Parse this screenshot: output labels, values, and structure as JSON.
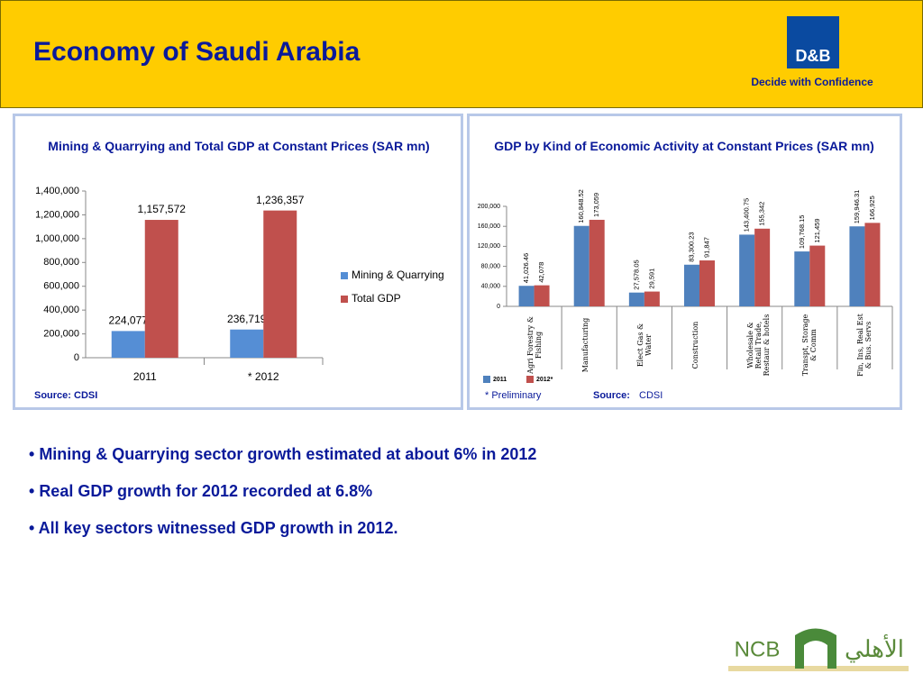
{
  "header": {
    "title": "Economy of Saudi Arabia",
    "logo": "D&B",
    "tagline": "Decide with Confidence"
  },
  "chart_data": [
    {
      "type": "bar",
      "title": "Mining & Quarrying and Total GDP at Constant Prices (SAR mn)",
      "categories": [
        "2011",
        "* 2012"
      ],
      "series": [
        {
          "name": "Mining & Quarrying",
          "color": "#558ed5",
          "values": [
            224077,
            236719
          ],
          "value_labels": [
            "224,077",
            "236,719"
          ]
        },
        {
          "name": "Total GDP",
          "color": "#c0504d",
          "values": [
            1157572,
            1236357
          ],
          "value_labels": [
            "1,157,572",
            "1,236,357"
          ]
        }
      ],
      "ylim": [
        0,
        1400000
      ],
      "yticks": [
        0,
        {
          "value": 200000,
          "label": "200,000"
        },
        {
          "value": 400000,
          "label": "400,000"
        },
        {
          "value": 600000,
          "label": "600,000"
        },
        {
          "value": 800000,
          "label": "800,000"
        },
        {
          "value": 1000000,
          "label": "1,000,000"
        },
        {
          "value": 1200000,
          "label": "1,200,000"
        },
        {
          "value": 1400000,
          "label": "1,400,000"
        }
      ],
      "legend": "right",
      "source": "Source: CDSI"
    },
    {
      "type": "bar",
      "title": "GDP by Kind of Economic Activity at Constant Prices (SAR mn)",
      "categories": [
        "Agri Forestry & Fishing",
        "Manufacturing",
        "Elect Gas & Water",
        "Construction",
        "Wholesale & Retail Trade, Restaur & hotels",
        "Transpt, Storage & Comm",
        "Fin, Ins, Real Est & Bus. Servs"
      ],
      "series": [
        {
          "name": "2011",
          "color": "#4f81bd",
          "values": [
            41026.46,
            160848.52,
            27578.05,
            83300.23,
            143400.75,
            109768.15,
            159946.31
          ],
          "value_labels": [
            "41,026.46",
            "160,848.52",
            "27,578.05",
            "83,300.23",
            "143,400.75",
            "109,768.15",
            "159,946.31"
          ]
        },
        {
          "name": "2012*",
          "color": "#c0504d",
          "values": [
            42078,
            173059,
            29591,
            91847,
            155342,
            121459,
            166925
          ],
          "value_labels": [
            "42,078",
            "173,059",
            "29,591",
            "91,847",
            "155,342",
            "121,459",
            "166,925"
          ]
        }
      ],
      "ylim": [
        0,
        200000
      ],
      "yticks": [
        0,
        {
          "value": 40000,
          "label": "40,000"
        },
        {
          "value": 80000,
          "label": "80,000"
        },
        {
          "value": 120000,
          "label": "120,000"
        },
        {
          "value": 160000,
          "label": "160,000"
        },
        {
          "value": 200000,
          "label": "200,000"
        }
      ],
      "legend": "bottom",
      "footnote": "* Preliminary",
      "source_label": "Source:",
      "source": "CDSI"
    }
  ],
  "bullets": [
    "Mining & Quarrying sector growth estimated at about 6% in 2012",
    "Real GDP growth for 2012 recorded at 6.8%",
    "All key sectors witnessed GDP growth in 2012."
  ],
  "footer_logo": {
    "latin": "NCB",
    "arabic": "الأهلي"
  }
}
